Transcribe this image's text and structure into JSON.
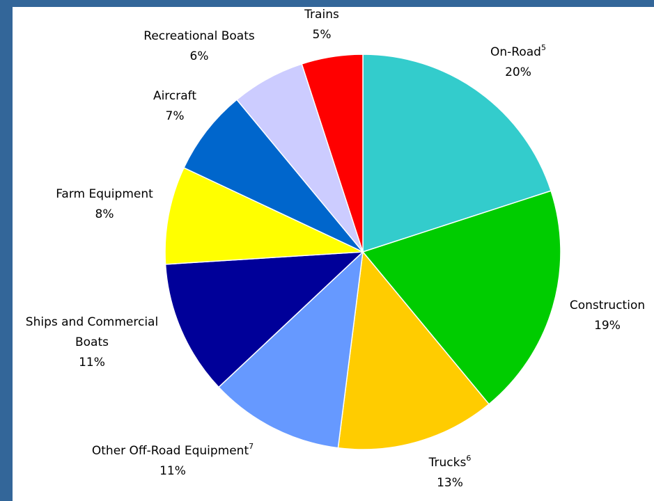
{
  "chart_data": {
    "type": "pie",
    "title": "",
    "slices": [
      {
        "label": "On-Road",
        "footnote": "5",
        "percent_label": "20%",
        "value": 20,
        "color": "#33CCCC"
      },
      {
        "label": "Construction",
        "footnote": "",
        "percent_label": "19%",
        "value": 19,
        "color": "#00CC00"
      },
      {
        "label": "Trucks",
        "footnote": "6",
        "percent_label": "13%",
        "value": 13,
        "color": "#FFCC00"
      },
      {
        "label": "Other Off-Road Equipment",
        "footnote": "7",
        "percent_label": "11%",
        "value": 11,
        "color": "#6699FF"
      },
      {
        "label": "Ships and Commercial Boats",
        "footnote": "",
        "percent_label": "11%",
        "value": 11,
        "color": "#000099"
      },
      {
        "label": "Farm Equipment",
        "footnote": "",
        "percent_label": "8%",
        "value": 8,
        "color": "#FFFF00"
      },
      {
        "label": "Aircraft",
        "footnote": "",
        "percent_label": "7%",
        "value": 7,
        "color": "#0066CC"
      },
      {
        "label": "Recreational Boats",
        "footnote": "",
        "percent_label": "6%",
        "value": 6,
        "color": "#CCCCFF"
      },
      {
        "label": "Trains",
        "footnote": "",
        "percent_label": "5%",
        "value": 5,
        "color": "#FF0000"
      }
    ]
  }
}
